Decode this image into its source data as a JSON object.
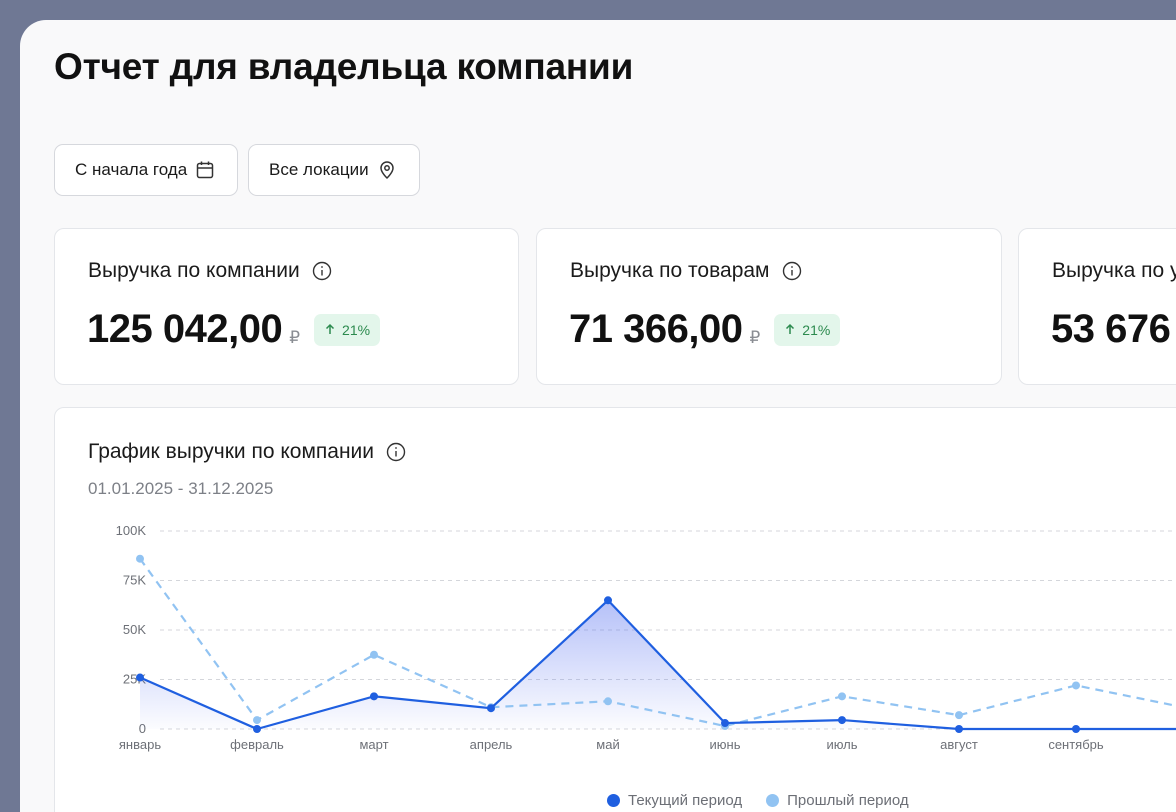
{
  "page": {
    "title": "Отчет для владельца компании"
  },
  "filters": {
    "period_label": "С начала года",
    "location_label": "Все локации"
  },
  "cards": [
    {
      "title": "Выручка по компании",
      "value": "125 042,00",
      "currency": "₽",
      "change": "21%"
    },
    {
      "title": "Выручка по товарам",
      "value": "71 366,00",
      "currency": "₽",
      "change": "21%"
    },
    {
      "title": "Выручка по у",
      "value": "53 676",
      "currency": "",
      "change": ""
    }
  ],
  "colors": {
    "current": "#1f5fe0",
    "previous": "#91c3f2",
    "badge_text": "#2c8a4e",
    "badge_bg": "#e3f6eb"
  },
  "chart": {
    "title": "График выручки по компании",
    "subtitle": "01.01.2025 - 31.12.2025",
    "legend": {
      "current": "Текущий период",
      "previous": "Прошлый период"
    }
  },
  "chart_data": {
    "type": "line",
    "title": "График выручки по компании",
    "categories": [
      "январь",
      "февраль",
      "март",
      "апрель",
      "май",
      "июнь",
      "июль",
      "август",
      "сентябрь",
      "о"
    ],
    "y_ticks": [
      "100K",
      "75K",
      "50K",
      "25K",
      "0"
    ],
    "ylim": [
      0,
      100000
    ],
    "grid": true,
    "legend_position": "bottom",
    "series": [
      {
        "name": "Текущий период",
        "values": [
          26000,
          0,
          16500,
          10500,
          65000,
          3000,
          4500,
          0,
          0,
          0
        ],
        "style": "solid-area"
      },
      {
        "name": "Прошлый период",
        "values": [
          86000,
          4500,
          37500,
          11000,
          14000,
          1500,
          16500,
          7000,
          22000,
          10000
        ],
        "style": "dashed"
      }
    ]
  }
}
